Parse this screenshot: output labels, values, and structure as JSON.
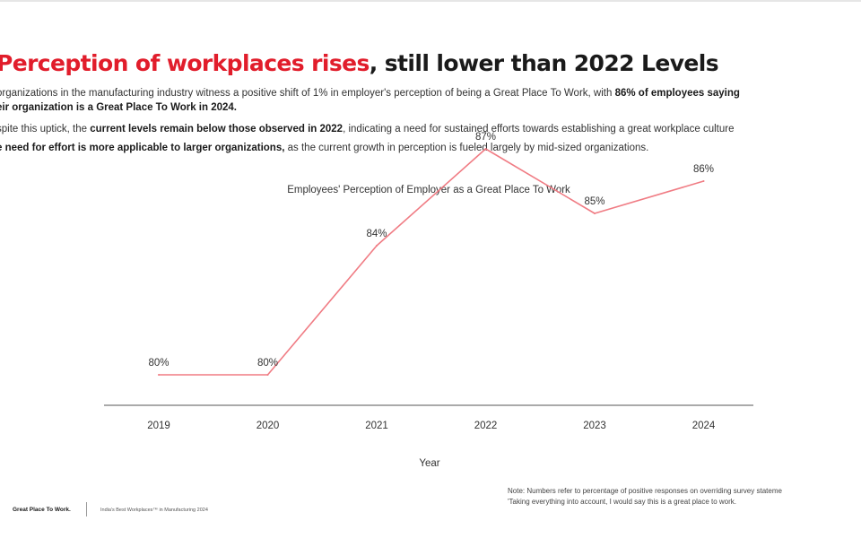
{
  "header": {
    "title_accent": "Perception of workplaces rises",
    "title_rest": ", still lower than 2022 Levels"
  },
  "body": {
    "line1_pre": "organizations in the manufacturing industry witness a positive shift of 1% in employer's perception of being a Great Place To Work, with ",
    "line1_bold": "86% of employees saying",
    "line2_bold": "eir organization is a Great Place To Work in 2024.",
    "line3_pre": "spite this uptick, the ",
    "line3_bold": "current levels remain below those observed in 2022",
    "line3_post": ", indicating a need for sustained efforts towards establishing a great workplace culture",
    "line4_bold": "e need for effort is more applicable to larger organizations,",
    "line4_post": " as the current growth in perception is fueled largely by mid-sized organizations."
  },
  "chart_data": {
    "type": "line",
    "title": "Employees' Perception of Employer as a Great Place To Work",
    "xlabel": "Year",
    "ylabel": "",
    "categories": [
      "2019",
      "2020",
      "2021",
      "2022",
      "2023",
      "2024"
    ],
    "series": [
      {
        "values": [
          80,
          80,
          84,
          87,
          85,
          86
        ]
      }
    ],
    "data_labels": [
      "80%",
      "80%",
      "84%",
      "87%",
      "85%",
      "86%"
    ],
    "ylim": [
      78,
      88
    ],
    "grid": false,
    "legend": "none",
    "line_color": "#f07c84",
    "axis_color": "#555555"
  },
  "note": {
    "line1": "Note: Numbers refer to percentage of positive responses on overriding survey stateme",
    "line2": "'Taking everything into account, I would say this is a great place to work."
  },
  "footer": {
    "brand": "Great Place To Work.",
    "caption": "India's Best Workplaces™ in Manufacturing 2024"
  }
}
